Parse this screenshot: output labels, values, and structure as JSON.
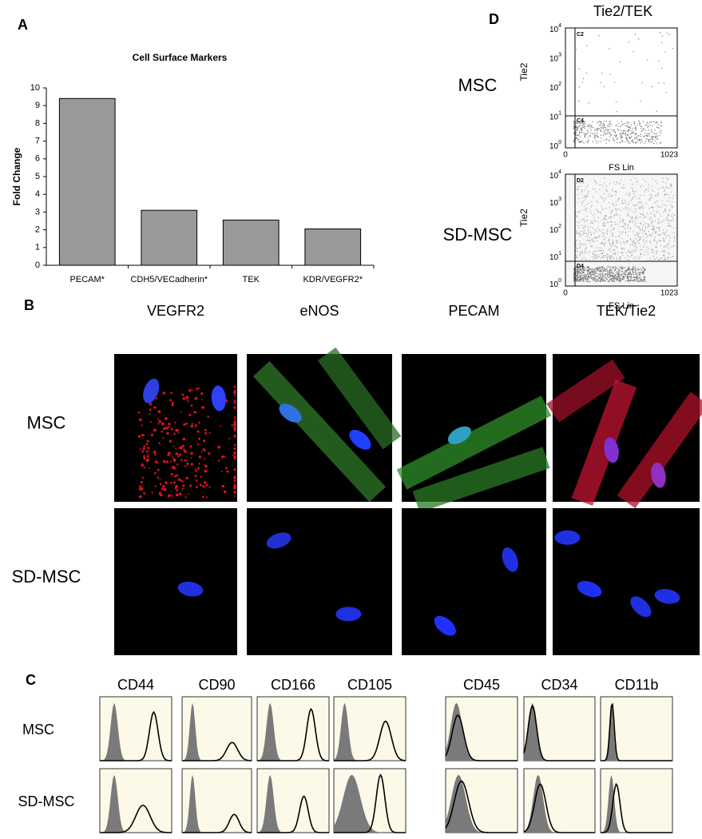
{
  "chart_data": {
    "type": "bar",
    "panel_label": "A",
    "title": "Cell Surface Markers",
    "y_label": "Fold Change",
    "categories": [
      "PECAM*",
      "CDH5/VECadherin*",
      "TEK",
      "KDR/VEGFR2*"
    ],
    "values": [
      9.4,
      3.1,
      2.55,
      2.05
    ],
    "color": "#999999",
    "ylim": [
      0,
      10
    ],
    "yticks": [
      0,
      1,
      2,
      3,
      4,
      5,
      6,
      7,
      8,
      9,
      10
    ]
  },
  "panel_b": {
    "label": "B",
    "columns": [
      "VEGFR2",
      "eNOS",
      "PECAM",
      "TEK/Tie2"
    ],
    "rows": [
      "MSC",
      "SD-MSC"
    ]
  },
  "panel_c": {
    "label": "C",
    "columns": [
      "CD44",
      "CD90",
      "CD166",
      "CD105",
      "CD45",
      "CD34",
      "CD11b"
    ],
    "rows": [
      "MSC",
      "SD-MSC"
    ]
  },
  "panel_d": {
    "label": "D",
    "title": "Tie2/TEK",
    "rows": [
      "MSC",
      "SD-MSC"
    ],
    "y_label": "Tie2",
    "x_label": "FS Lin",
    "x_ticks": [
      "0",
      "1023"
    ],
    "plots": [
      {
        "gates": [
          "C2",
          "C4"
        ],
        "y_ticks": [
          {
            "base": "10",
            "exponent": "4"
          },
          {
            "base": "10",
            "exponent": "3"
          },
          {
            "base": "10",
            "exponent": "2"
          },
          {
            "base": "10",
            "exponent": "1"
          },
          {
            "base": "10",
            "exponent": "0"
          }
        ]
      },
      {
        "gates": [
          "D2",
          "D4"
        ],
        "y_ticks": [
          {
            "base": "10",
            "exponent": "4"
          },
          {
            "base": "10",
            "exponent": "3"
          },
          {
            "base": "10",
            "exponent": "2"
          },
          {
            "base": "10",
            "exponent": "1"
          },
          {
            "base": "10",
            "exponent": "0"
          }
        ]
      }
    ]
  }
}
